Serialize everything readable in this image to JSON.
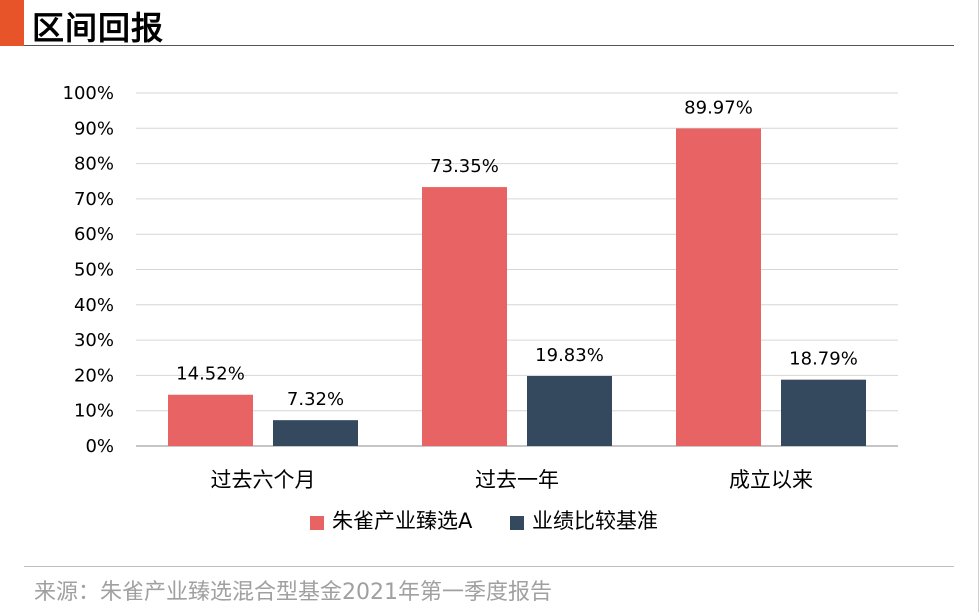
{
  "header": {
    "title": "区间回报"
  },
  "footer": {
    "source": "来源：朱雀产业臻选混合型基金2021年第一季度报告"
  },
  "colors": {
    "accent": "#e8542a",
    "series_fund": "#e86464",
    "series_bench": "#34495e"
  },
  "chart_data": {
    "type": "bar",
    "categories": [
      "过去六个月",
      "过去一年",
      "成立以来"
    ],
    "series": [
      {
        "name": "朱雀产业臻选A",
        "values": [
          14.52,
          73.35,
          89.97
        ],
        "labels": [
          "14.52%",
          "73.35%",
          "89.97%"
        ],
        "color": "#e86464"
      },
      {
        "name": "业绩比较基准",
        "values": [
          7.32,
          19.83,
          18.79
        ],
        "labels": [
          "7.32%",
          "19.83%",
          "18.79%"
        ],
        "color": "#34495e"
      }
    ],
    "ylim": [
      0,
      100
    ],
    "yticks": [
      0,
      10,
      20,
      30,
      40,
      50,
      60,
      70,
      80,
      90,
      100
    ],
    "ytick_labels": [
      "0%",
      "10%",
      "20%",
      "30%",
      "40%",
      "50%",
      "60%",
      "70%",
      "80%",
      "90%",
      "100%"
    ],
    "grid": true,
    "legend": "bottom"
  }
}
